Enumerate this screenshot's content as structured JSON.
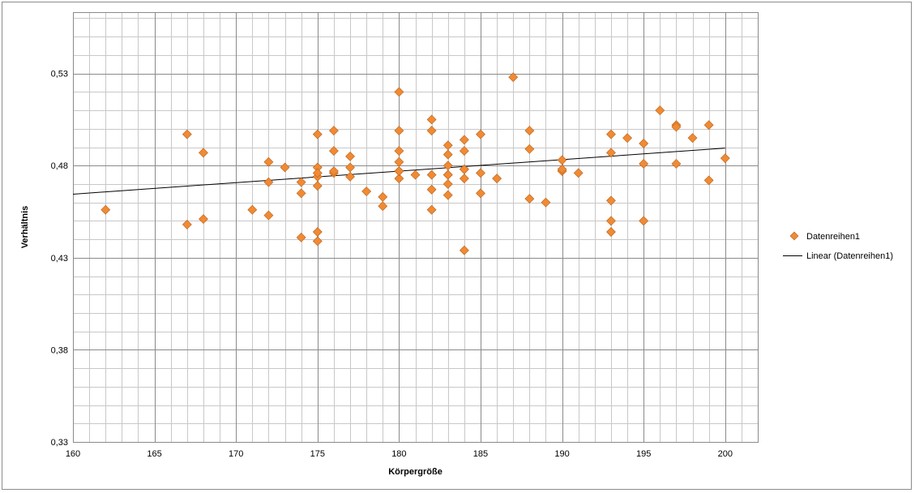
{
  "chart_data": {
    "type": "scatter",
    "title": "",
    "xlabel": "Körpergröße",
    "ylabel": "Verhältnis",
    "xlim": [
      160,
      202
    ],
    "ylim": [
      0.33,
      0.5633
    ],
    "x_ticks": [
      160,
      165,
      170,
      175,
      180,
      185,
      190,
      195,
      200
    ],
    "x_tick_labels": [
      "160",
      "165",
      "170",
      "175",
      "180",
      "185",
      "190",
      "195",
      "200"
    ],
    "y_ticks": [
      0.33,
      0.38,
      0.43,
      0.48,
      0.53
    ],
    "y_tick_labels": [
      "0,33",
      "0,38",
      "0,43",
      "0,48",
      "0,53"
    ],
    "grid": {
      "major": true,
      "minor": true,
      "x_minor_step": 1,
      "y_minor_step": 0.01
    },
    "legend_position": "right",
    "colors": {
      "marker": "#f08a34",
      "marker_edge": "#b8621a",
      "trendline": "#000000",
      "grid_major": "#8a8a8a",
      "grid_minor": "#c8c8c8",
      "frame": "#8c8c8c"
    },
    "series": [
      {
        "name": "Datenreihen1",
        "marker": "diamond",
        "x": [
          162,
          167,
          167,
          168,
          168,
          171,
          172,
          172,
          172,
          173,
          174,
          174,
          174,
          175,
          175,
          175,
          175,
          175,
          175,
          175,
          176,
          176,
          176,
          176,
          177,
          177,
          177,
          178,
          179,
          179,
          180,
          180,
          180,
          180,
          180,
          180,
          180,
          181,
          182,
          182,
          182,
          182,
          182,
          183,
          183,
          183,
          183,
          183,
          183,
          183,
          184,
          184,
          184,
          184,
          184,
          184,
          185,
          185,
          185,
          186,
          187,
          188,
          188,
          188,
          189,
          190,
          190,
          190,
          191,
          193,
          193,
          193,
          193,
          193,
          194,
          195,
          195,
          195,
          196,
          197,
          197,
          197,
          198,
          199,
          199,
          200
        ],
        "y": [
          0.456,
          0.448,
          0.497,
          0.451,
          0.487,
          0.456,
          0.453,
          0.471,
          0.482,
          0.479,
          0.441,
          0.465,
          0.471,
          0.439,
          0.444,
          0.469,
          0.474,
          0.479,
          0.497,
          0.476,
          0.476,
          0.477,
          0.488,
          0.499,
          0.474,
          0.479,
          0.485,
          0.466,
          0.458,
          0.463,
          0.473,
          0.477,
          0.482,
          0.488,
          0.499,
          0.52,
          0.477,
          0.475,
          0.456,
          0.467,
          0.499,
          0.505,
          0.475,
          0.464,
          0.47,
          0.475,
          0.48,
          0.486,
          0.491,
          0.475,
          0.434,
          0.473,
          0.478,
          0.488,
          0.494,
          0.478,
          0.465,
          0.476,
          0.497,
          0.473,
          0.528,
          0.462,
          0.489,
          0.499,
          0.46,
          0.477,
          0.478,
          0.483,
          0.476,
          0.444,
          0.45,
          0.461,
          0.487,
          0.497,
          0.495,
          0.45,
          0.481,
          0.492,
          0.51,
          0.481,
          0.502,
          0.501,
          0.495,
          0.472,
          0.502,
          0.484
        ]
      },
      {
        "name": "Linear (Datenreihen1)",
        "type": "trendline",
        "x": [
          160,
          200
        ],
        "y": [
          0.4645,
          0.4895
        ]
      }
    ]
  }
}
